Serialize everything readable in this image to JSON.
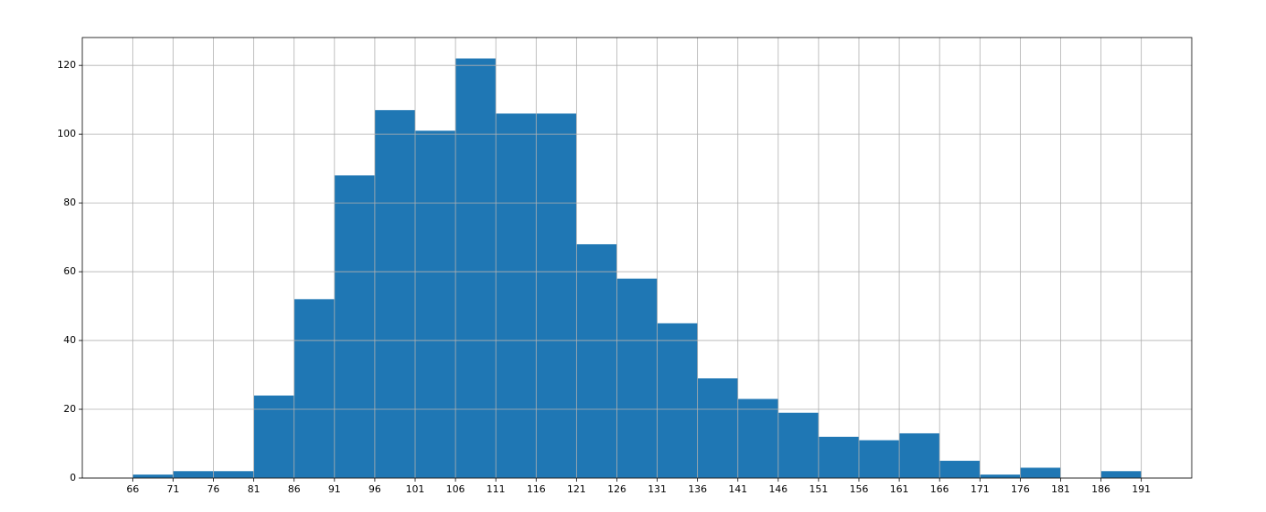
{
  "chart_data": {
    "type": "histogram",
    "bins": [
      66,
      71,
      76,
      81,
      86,
      91,
      96,
      101,
      106,
      111,
      116,
      121,
      126,
      131,
      136,
      141,
      146,
      151,
      156,
      161,
      166,
      171,
      176,
      181,
      186,
      191
    ],
    "values": [
      1,
      2,
      2,
      24,
      52,
      88,
      107,
      101,
      122,
      106,
      106,
      68,
      58,
      45,
      29,
      23,
      19,
      12,
      11,
      13,
      5,
      1,
      3,
      0,
      2
    ],
    "color": "#1f77b4",
    "xlim": [
      59.75,
      197.25
    ],
    "xticks": [
      66,
      71,
      76,
      81,
      86,
      91,
      96,
      101,
      106,
      111,
      116,
      121,
      126,
      131,
      136,
      141,
      146,
      151,
      156,
      161,
      166,
      171,
      176,
      181,
      186,
      191
    ],
    "ylim": [
      0,
      128.1
    ],
    "yticks": [
      0,
      20,
      40,
      60,
      80,
      100,
      120
    ],
    "grid": true
  }
}
